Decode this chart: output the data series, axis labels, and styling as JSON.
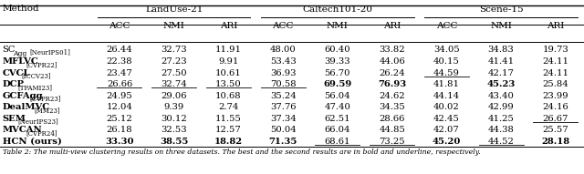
{
  "caption": "Table 2: The multi-view clustering results on three datasets. The best and the second results are in bold and underline, respectively.",
  "dataset_headers": [
    "LandUse-21",
    "Caltech101-20",
    "Scene-15"
  ],
  "col_headers": [
    "ACC",
    "NMI",
    "ARI",
    "ACC",
    "NMI",
    "ARI",
    "ACC",
    "NMI",
    "ARI"
  ],
  "methods_main": [
    "SC",
    "MFLVC",
    "CVCL",
    "DCP",
    "GCFAgg",
    "DealMVC",
    "SEM",
    "MVCAN",
    "HCN (ours)"
  ],
  "methods_sub1": [
    "Agg",
    "",
    "",
    "",
    "",
    "",
    "",
    "",
    ""
  ],
  "methods_ref": [
    "[NeurIPS01]",
    "[CVPR22]",
    "[ICCV23]",
    "[TPAMI23]",
    "[CVPR23]",
    "[MM23]",
    "[NeurIPS23]",
    "[CVPR24]",
    ""
  ],
  "methods_bold": [
    false,
    true,
    true,
    true,
    true,
    true,
    true,
    true,
    true
  ],
  "data": [
    [
      26.44,
      32.73,
      11.91,
      48.0,
      60.4,
      33.82,
      34.05,
      34.83,
      19.73
    ],
    [
      22.38,
      27.23,
      9.91,
      53.43,
      39.33,
      44.06,
      40.15,
      41.41,
      24.11
    ],
    [
      23.47,
      27.5,
      10.61,
      36.93,
      56.7,
      26.24,
      44.59,
      42.17,
      24.11
    ],
    [
      26.66,
      32.74,
      13.5,
      70.58,
      69.59,
      76.93,
      41.81,
      45.23,
      25.84
    ],
    [
      24.95,
      29.06,
      10.68,
      35.24,
      56.04,
      24.62,
      44.14,
      43.4,
      23.99
    ],
    [
      12.04,
      9.39,
      2.74,
      37.76,
      47.4,
      34.35,
      40.02,
      42.99,
      24.16
    ],
    [
      25.12,
      30.12,
      11.55,
      37.34,
      62.51,
      28.66,
      42.45,
      41.25,
      26.67
    ],
    [
      26.18,
      32.53,
      12.57,
      50.04,
      66.04,
      44.85,
      42.07,
      44.38,
      25.57
    ],
    [
      33.3,
      38.55,
      18.82,
      71.35,
      68.61,
      73.25,
      45.2,
      44.52,
      28.18
    ]
  ],
  "bold": [
    [
      false,
      false,
      false,
      false,
      false,
      false,
      false,
      false,
      false
    ],
    [
      false,
      false,
      false,
      false,
      false,
      false,
      false,
      false,
      false
    ],
    [
      false,
      false,
      false,
      false,
      false,
      false,
      false,
      false,
      false
    ],
    [
      false,
      false,
      false,
      false,
      true,
      true,
      false,
      true,
      false
    ],
    [
      false,
      false,
      false,
      false,
      false,
      false,
      false,
      false,
      false
    ],
    [
      false,
      false,
      false,
      false,
      false,
      false,
      false,
      false,
      false
    ],
    [
      false,
      false,
      false,
      false,
      false,
      false,
      false,
      false,
      false
    ],
    [
      false,
      false,
      false,
      false,
      false,
      false,
      false,
      false,
      false
    ],
    [
      true,
      true,
      true,
      true,
      false,
      false,
      true,
      false,
      true
    ]
  ],
  "underline": [
    [
      false,
      false,
      false,
      false,
      false,
      false,
      false,
      false,
      false
    ],
    [
      false,
      false,
      false,
      false,
      false,
      false,
      false,
      false,
      false
    ],
    [
      false,
      false,
      false,
      false,
      false,
      false,
      true,
      false,
      false
    ],
    [
      true,
      true,
      true,
      true,
      false,
      false,
      false,
      false,
      false
    ],
    [
      false,
      false,
      false,
      false,
      false,
      false,
      false,
      false,
      false
    ],
    [
      false,
      false,
      false,
      false,
      false,
      false,
      false,
      false,
      false
    ],
    [
      false,
      false,
      false,
      false,
      false,
      false,
      false,
      false,
      true
    ],
    [
      false,
      false,
      false,
      false,
      false,
      false,
      false,
      false,
      false
    ],
    [
      false,
      false,
      false,
      false,
      true,
      true,
      false,
      true,
      false
    ]
  ],
  "bg_color": "#ffffff",
  "figsize": [
    6.4,
    1.91
  ],
  "dpi": 100
}
